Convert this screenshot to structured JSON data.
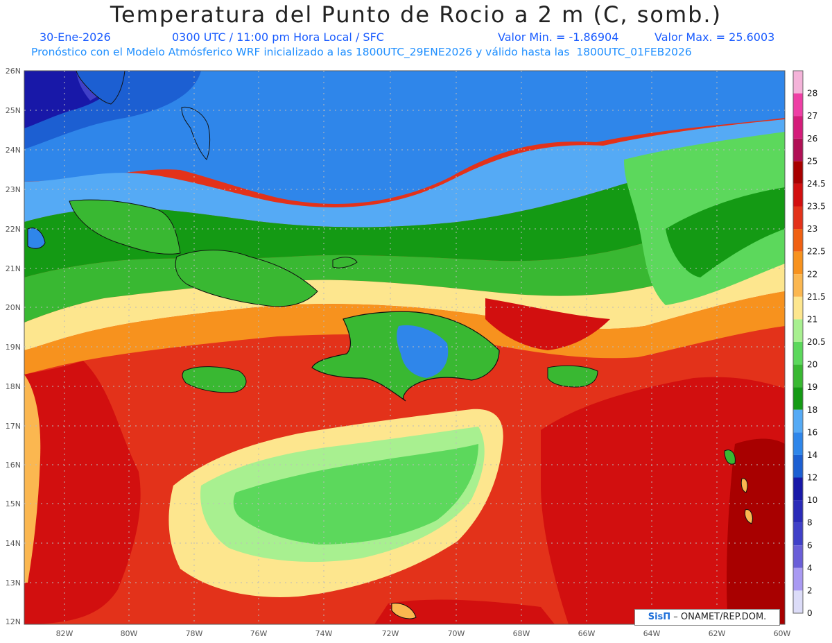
{
  "header": {
    "title": "Temperatura del Punto de Rocio a 2 m (C, somb.)",
    "date": "30-Ene-2026",
    "time_info": "0300 UTC / 11:00 pm Hora Local / SFC",
    "min_label": "Valor Min. = -1.86904",
    "max_label": "Valor Max. = 25.6003",
    "model_info": "Pronóstico con el Modelo Atmósferico WRF inicializado a las 1800UTC_29ENE2026 y válido hasta las  1800UTC_01FEB2026"
  },
  "axes": {
    "lon_labels": [
      "82W",
      "80W",
      "78W",
      "76W",
      "74W",
      "72W",
      "70W",
      "68W",
      "66W",
      "64W",
      "62W",
      "60W"
    ],
    "lat_labels": [
      "26N",
      "25N",
      "24N",
      "23N",
      "22N",
      "21N",
      "20N",
      "19N",
      "18N",
      "17N",
      "16N",
      "15N",
      "14N",
      "13N",
      "12N"
    ]
  },
  "colorbar": {
    "levels": [
      {
        "label": "28",
        "color": "#f4b3d9"
      },
      {
        "label": "27",
        "color": "#ee3fa5"
      },
      {
        "label": "26",
        "color": "#d41c7a"
      },
      {
        "label": "25",
        "color": "#b01055"
      },
      {
        "label": "24.5",
        "color": "#a80000"
      },
      {
        "label": "23.5",
        "color": "#d20f0f"
      },
      {
        "label": "23",
        "color": "#e3321a"
      },
      {
        "label": "22.5",
        "color": "#f06012"
      },
      {
        "label": "22",
        "color": "#f7921e"
      },
      {
        "label": "21.5",
        "color": "#fbb750"
      },
      {
        "label": "21",
        "color": "#fde68e"
      },
      {
        "label": "20.5",
        "color": "#a8f090"
      },
      {
        "label": "20",
        "color": "#5cd85c"
      },
      {
        "label": "19",
        "color": "#39b832"
      },
      {
        "label": "18",
        "color": "#149a14"
      },
      {
        "label": "16",
        "color": "#55aaf5"
      },
      {
        "label": "14",
        "color": "#2f86ea"
      },
      {
        "label": "12",
        "color": "#1c5fd2"
      },
      {
        "label": "10",
        "color": "#1818a8"
      },
      {
        "label": "8",
        "color": "#2a2ab8"
      },
      {
        "label": "6",
        "color": "#4040c8"
      },
      {
        "label": "4",
        "color": "#6a5ed8"
      },
      {
        "label": "2",
        "color": "#a99af2"
      },
      {
        "label": "0",
        "color": "#dcdcf8"
      }
    ]
  },
  "credit": {
    "brand": "SisΠ",
    "text": " – ONAMET/REP.DOM."
  }
}
